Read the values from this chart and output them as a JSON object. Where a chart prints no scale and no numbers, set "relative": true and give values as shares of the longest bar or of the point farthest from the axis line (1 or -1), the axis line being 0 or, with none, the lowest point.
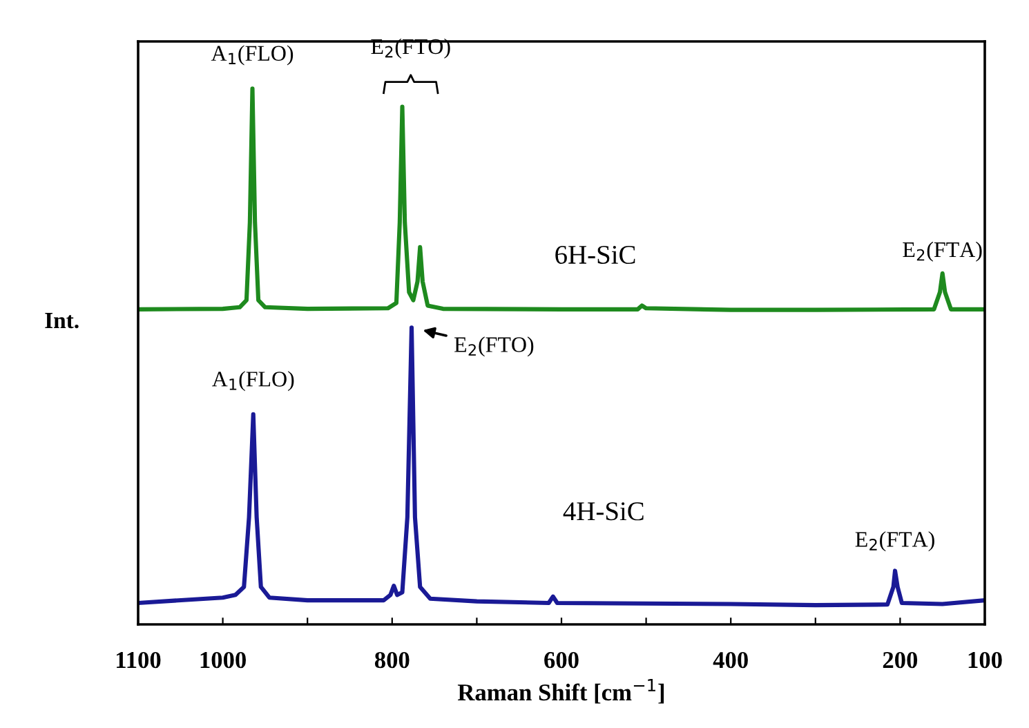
{
  "chart_data": {
    "type": "line",
    "relative": true,
    "xlabel": "Raman Shift [cm$^{−1}$]",
    "ylabel": "Int.",
    "xlim": [
      1100,
      100
    ],
    "xticks": [
      1100,
      1000,
      {
        "value": 900,
        "label": null
      },
      800,
      {
        "value": 700,
        "label": null
      },
      600,
      {
        "value": 500,
        "label": null
      },
      400,
      {
        "value": 300,
        "label": null
      },
      200,
      100
    ],
    "grid": false,
    "legend": false,
    "marker": "none",
    "line_style": "solid",
    "series": [
      {
        "name": "6H-SiC",
        "color": "#1e8a1e",
        "x": [
          1100,
          1000,
          980,
          972,
          968,
          965,
          962,
          958,
          950,
          900,
          805,
          795,
          791,
          788,
          785,
          780,
          775,
          770,
          767,
          764,
          758,
          740,
          600,
          510,
          505,
          500,
          400,
          300,
          160,
          153,
          150,
          147,
          140,
          100
        ],
        "values": [
          0.588,
          0.589,
          0.592,
          0.605,
          0.75,
          1.0,
          0.75,
          0.605,
          0.592,
          0.589,
          0.59,
          0.6,
          0.75,
          0.966,
          0.75,
          0.62,
          0.605,
          0.64,
          0.704,
          0.64,
          0.595,
          0.589,
          0.588,
          0.588,
          0.595,
          0.59,
          0.587,
          0.587,
          0.588,
          0.62,
          0.655,
          0.62,
          0.588,
          0.588
        ]
      },
      {
        "name": "4H-SiC",
        "color": "#1a1a96",
        "x": [
          1100,
          1000,
          985,
          975,
          969,
          964,
          960,
          955,
          945,
          900,
          810,
          802,
          798,
          794,
          788,
          782,
          777,
          773,
          767,
          755,
          700,
          615,
          610,
          605,
          400,
          300,
          215,
          208,
          206,
          203,
          198,
          150,
          100
        ],
        "values": [
          0.04,
          0.05,
          0.055,
          0.07,
          0.2,
          0.392,
          0.2,
          0.07,
          0.05,
          0.045,
          0.045,
          0.055,
          0.072,
          0.055,
          0.06,
          0.2,
          0.554,
          0.2,
          0.07,
          0.048,
          0.043,
          0.04,
          0.052,
          0.04,
          0.038,
          0.036,
          0.037,
          0.07,
          0.1,
          0.07,
          0.04,
          0.038,
          0.045
        ]
      }
    ],
    "annotations": [
      {
        "text": "A$_{1}$(FLO)",
        "x": 965,
        "y": 1.0
      },
      {
        "text": "E$_{2}$(FTO)",
        "x": 778,
        "y": 0.966
      },
      {
        "text": "E$_{2}$(FTA)",
        "x": 150,
        "y": 0.655
      },
      {
        "text": "E$_{2}$(FTO)",
        "x": 777,
        "y": 0.554
      },
      {
        "text": "A$_{1}$(FLO)",
        "x": 964,
        "y": 0.392
      },
      {
        "text": "E$_{2}$(FTA)",
        "x": 206,
        "y": 0.1
      }
    ]
  }
}
